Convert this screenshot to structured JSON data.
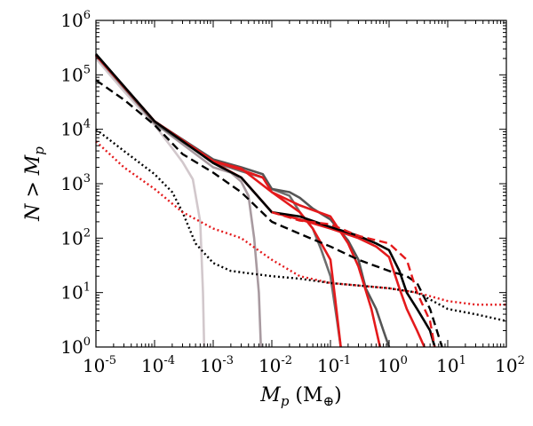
{
  "chart_data": {
    "type": "line",
    "title": "",
    "xlabel": "M_p (M_⊕)",
    "ylabel": "N > M_p",
    "xscale": "log",
    "yscale": "log",
    "xlim": [
      1e-05,
      100
    ],
    "ylim": [
      1,
      1000000
    ],
    "grid": false,
    "x_ticks": [
      {
        "base": "10",
        "exp": "-5",
        "value": 1e-05
      },
      {
        "base": "10",
        "exp": "-4",
        "value": 0.0001
      },
      {
        "base": "10",
        "exp": "-3",
        "value": 0.001
      },
      {
        "base": "10",
        "exp": "-2",
        "value": 0.01
      },
      {
        "base": "10",
        "exp": "-1",
        "value": 0.1
      },
      {
        "base": "10",
        "exp": "0",
        "value": 1
      },
      {
        "base": "10",
        "exp": "1",
        "value": 10
      },
      {
        "base": "10",
        "exp": "2",
        "value": 100
      }
    ],
    "y_ticks": [
      {
        "base": "10",
        "exp": "0",
        "value": 1
      },
      {
        "base": "10",
        "exp": "1",
        "value": 10
      },
      {
        "base": "10",
        "exp": "2",
        "value": 100
      },
      {
        "base": "10",
        "exp": "3",
        "value": 1000
      },
      {
        "base": "10",
        "exp": "4",
        "value": 10000
      },
      {
        "base": "10",
        "exp": "5",
        "value": 100000
      },
      {
        "base": "10",
        "exp": "6",
        "value": 1000000
      }
    ],
    "series": [
      {
        "name": "gray-lightest-solid",
        "color": "#d2c8cc",
        "style": "solid",
        "x": [
          1e-05,
          3e-05,
          0.0001,
          0.0002,
          0.0003,
          0.00045,
          0.0006,
          0.00067,
          0.0007
        ],
        "y": [
          200000,
          50000,
          12000,
          4500,
          2500,
          1200,
          200,
          10,
          1
        ]
      },
      {
        "name": "gray-light-solid",
        "color": "#a89aa0",
        "style": "solid",
        "x": [
          1e-05,
          0.0001,
          0.001,
          0.002,
          0.003,
          0.004,
          0.005,
          0.006,
          0.0065
        ],
        "y": [
          220000,
          13000,
          2000,
          1600,
          1100,
          600,
          100,
          10,
          1
        ]
      },
      {
        "name": "gray-mid-solid",
        "color": "#6e6e6e",
        "style": "solid",
        "x": [
          1e-05,
          0.0001,
          0.001,
          0.003,
          0.007,
          0.01,
          0.02,
          0.03,
          0.05,
          0.07,
          0.1,
          0.13,
          0.15
        ],
        "y": [
          230000,
          13000,
          2500,
          1700,
          1300,
          800,
          600,
          300,
          150,
          60,
          20,
          3,
          1
        ]
      },
      {
        "name": "gray-dark-solid",
        "color": "#555555",
        "style": "solid",
        "x": [
          1e-05,
          0.0001,
          0.001,
          0.003,
          0.007,
          0.01,
          0.02,
          0.03,
          0.05,
          0.1,
          0.2,
          0.3,
          0.4,
          0.6,
          0.8,
          1.0
        ],
        "y": [
          240000,
          14000,
          2800,
          2000,
          1500,
          800,
          700,
          550,
          350,
          220,
          90,
          40,
          12,
          5,
          2,
          1
        ]
      },
      {
        "name": "red-solid-1",
        "color": "#e41a1c",
        "style": "solid",
        "x": [
          1e-05,
          0.0001,
          0.001,
          0.003,
          0.007,
          0.01,
          0.03,
          0.05,
          0.1,
          0.12,
          0.15
        ],
        "y": [
          230000,
          14000,
          2600,
          1800,
          1300,
          700,
          300,
          150,
          40,
          8,
          1
        ]
      },
      {
        "name": "red-solid-2",
        "color": "#e41a1c",
        "style": "solid",
        "x": [
          1e-05,
          0.0001,
          0.001,
          0.003,
          0.01,
          0.03,
          0.1,
          0.2,
          0.3,
          0.5,
          0.7
        ],
        "y": [
          230000,
          14000,
          2600,
          1900,
          700,
          400,
          250,
          80,
          30,
          5,
          1
        ]
      },
      {
        "name": "red-solid-3",
        "color": "#e41a1c",
        "style": "solid",
        "x": [
          1e-05,
          0.0001,
          0.001,
          0.003,
          0.01,
          0.03,
          0.1,
          0.3,
          0.6,
          1.0,
          1.5,
          2.0,
          3.0,
          4.0
        ],
        "y": [
          230000,
          14000,
          2500,
          1300,
          300,
          220,
          150,
          100,
          70,
          45,
          12,
          5,
          2,
          1
        ]
      },
      {
        "name": "black-solid",
        "color": "#000000",
        "style": "solid",
        "x": [
          1e-05,
          0.0001,
          0.001,
          0.003,
          0.01,
          0.03,
          0.1,
          0.3,
          0.6,
          1.0,
          1.5,
          2.0,
          3.0,
          4.0,
          5.0,
          6.0
        ],
        "y": [
          240000,
          14000,
          2400,
          1300,
          300,
          250,
          160,
          110,
          80,
          60,
          25,
          10,
          5,
          3,
          2,
          1
        ]
      },
      {
        "name": "black-dashed",
        "color": "#000000",
        "style": "dashed",
        "x": [
          1e-05,
          3e-05,
          0.0001,
          0.0003,
          0.001,
          0.003,
          0.01,
          0.03,
          0.1,
          0.3,
          1.0,
          2.0,
          3.0,
          5.0,
          8.0
        ],
        "y": [
          80000,
          35000,
          12000,
          3500,
          1600,
          700,
          200,
          120,
          70,
          40,
          25,
          20,
          15,
          5,
          1
        ]
      },
      {
        "name": "red-dashed",
        "color": "#e41a1c",
        "style": "dashed",
        "x": [
          0.01,
          0.03,
          0.1,
          0.3,
          1.0,
          2.0,
          3.0,
          5.0,
          6.0
        ],
        "y": [
          300,
          210,
          180,
          110,
          80,
          40,
          10,
          3,
          1
        ]
      },
      {
        "name": "black-dotted",
        "color": "#000000",
        "style": "dotted",
        "x": [
          1e-05,
          3e-05,
          0.0001,
          0.0002,
          0.0003,
          0.0005,
          0.001,
          0.002,
          0.01,
          0.03,
          0.1,
          1,
          3,
          10,
          30,
          100
        ],
        "y": [
          10000,
          4000,
          1500,
          700,
          300,
          80,
          35,
          25,
          20,
          18,
          15,
          12,
          10,
          5,
          4,
          3
        ]
      },
      {
        "name": "red-dotted",
        "color": "#e41a1c",
        "style": "dotted",
        "x": [
          1e-05,
          3e-05,
          0.0001,
          0.0003,
          0.001,
          0.003,
          0.01,
          0.03,
          0.1,
          1,
          3,
          10,
          30,
          100
        ],
        "y": [
          6000,
          2000,
          800,
          300,
          150,
          100,
          40,
          20,
          15,
          12,
          10,
          7,
          6,
          6
        ]
      }
    ]
  }
}
